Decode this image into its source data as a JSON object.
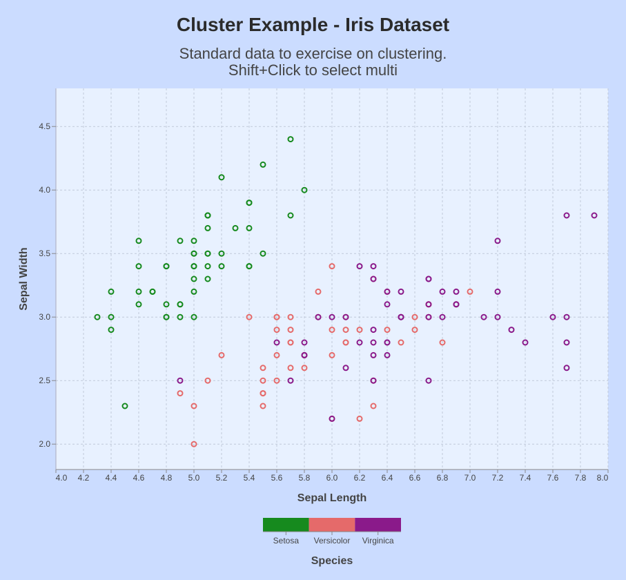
{
  "title": "Cluster Example - Iris Dataset",
  "subtitle_lines": [
    "Standard data to exercise on clustering.",
    "Shift+Click to select multi"
  ],
  "chart_data": {
    "type": "scatter",
    "xlabel": "Sepal Length",
    "ylabel": "Sepal Width",
    "xlim": [
      4.0,
      8.0
    ],
    "ylim": [
      1.8,
      4.8
    ],
    "x_ticks": [
      4.0,
      4.2,
      4.4,
      4.6,
      4.8,
      5.0,
      5.2,
      5.4,
      5.6,
      5.8,
      6.0,
      6.2,
      6.4,
      6.6,
      6.8,
      7.0,
      7.2,
      7.4,
      7.6,
      7.8,
      8.0
    ],
    "x_tick_labels": [
      "4.0",
      "4.2",
      "4.4",
      "4.6",
      "4.8",
      "5.0",
      "5.2",
      "5.4",
      "5.6",
      "5.8",
      "6.0",
      "6.2",
      "6.4",
      "6.6",
      "6.8",
      "7.0",
      "7.2",
      "7.4",
      "7.6",
      "7.8",
      "8.0"
    ],
    "y_ticks": [
      2.0,
      2.5,
      3.0,
      3.5,
      4.0,
      4.5
    ],
    "y_tick_labels": [
      "2.0",
      "2.5",
      "3.0",
      "3.5",
      "4.0",
      "4.5"
    ],
    "grid": true,
    "legend": {
      "title": "Species",
      "placement": "bottom",
      "entries": [
        "Setosa",
        "Versicolor",
        "Virginica"
      ]
    },
    "colors": {
      "Setosa": "#168a1e",
      "Versicolor": "#e56a6a",
      "Virginica": "#8a1a8a",
      "background": "#cbdcff",
      "plot_background": "#e8f1ff",
      "grid": "#bfc9d9"
    },
    "series": [
      {
        "name": "Setosa",
        "points": [
          [
            5.1,
            3.5
          ],
          [
            4.9,
            3.0
          ],
          [
            4.7,
            3.2
          ],
          [
            4.6,
            3.1
          ],
          [
            5.0,
            3.6
          ],
          [
            5.4,
            3.9
          ],
          [
            4.6,
            3.4
          ],
          [
            5.0,
            3.4
          ],
          [
            4.4,
            2.9
          ],
          [
            4.9,
            3.1
          ],
          [
            5.4,
            3.7
          ],
          [
            4.8,
            3.4
          ],
          [
            4.8,
            3.0
          ],
          [
            4.3,
            3.0
          ],
          [
            5.8,
            4.0
          ],
          [
            5.7,
            4.4
          ],
          [
            5.4,
            3.9
          ],
          [
            5.1,
            3.5
          ],
          [
            5.7,
            3.8
          ],
          [
            5.1,
            3.8
          ],
          [
            5.4,
            3.4
          ],
          [
            5.1,
            3.7
          ],
          [
            4.6,
            3.6
          ],
          [
            5.1,
            3.3
          ],
          [
            4.8,
            3.4
          ],
          [
            5.0,
            3.0
          ],
          [
            5.0,
            3.4
          ],
          [
            5.2,
            3.5
          ],
          [
            5.2,
            3.4
          ],
          [
            4.7,
            3.2
          ],
          [
            4.8,
            3.1
          ],
          [
            5.4,
            3.4
          ],
          [
            5.2,
            4.1
          ],
          [
            5.5,
            4.2
          ],
          [
            4.9,
            3.1
          ],
          [
            5.0,
            3.2
          ],
          [
            5.5,
            3.5
          ],
          [
            4.9,
            3.6
          ],
          [
            4.4,
            3.0
          ],
          [
            5.1,
            3.4
          ],
          [
            5.0,
            3.5
          ],
          [
            4.5,
            2.3
          ],
          [
            4.4,
            3.2
          ],
          [
            5.0,
            3.5
          ],
          [
            5.1,
            3.8
          ],
          [
            4.8,
            3.0
          ],
          [
            5.1,
            3.8
          ],
          [
            4.6,
            3.2
          ],
          [
            5.3,
            3.7
          ],
          [
            5.0,
            3.3
          ]
        ]
      },
      {
        "name": "Versicolor",
        "points": [
          [
            7.0,
            3.2
          ],
          [
            6.4,
            3.2
          ],
          [
            6.9,
            3.1
          ],
          [
            5.5,
            2.3
          ],
          [
            6.5,
            2.8
          ],
          [
            5.7,
            2.8
          ],
          [
            6.3,
            3.3
          ],
          [
            4.9,
            2.4
          ],
          [
            6.6,
            2.9
          ],
          [
            5.2,
            2.7
          ],
          [
            5.0,
            2.0
          ],
          [
            5.9,
            3.0
          ],
          [
            6.0,
            2.2
          ],
          [
            6.1,
            2.9
          ],
          [
            5.6,
            2.9
          ],
          [
            6.7,
            3.1
          ],
          [
            5.6,
            3.0
          ],
          [
            5.8,
            2.7
          ],
          [
            6.2,
            2.2
          ],
          [
            5.6,
            2.5
          ],
          [
            5.9,
            3.2
          ],
          [
            6.1,
            2.8
          ],
          [
            6.3,
            2.5
          ],
          [
            6.1,
            2.8
          ],
          [
            6.4,
            2.9
          ],
          [
            6.6,
            3.0
          ],
          [
            6.8,
            2.8
          ],
          [
            6.7,
            3.0
          ],
          [
            6.0,
            2.9
          ],
          [
            5.7,
            2.6
          ],
          [
            5.5,
            2.4
          ],
          [
            5.5,
            2.4
          ],
          [
            5.8,
            2.7
          ],
          [
            6.0,
            2.7
          ],
          [
            5.4,
            3.0
          ],
          [
            6.0,
            3.4
          ],
          [
            6.7,
            3.1
          ],
          [
            6.3,
            2.3
          ],
          [
            5.6,
            3.0
          ],
          [
            5.5,
            2.5
          ],
          [
            5.5,
            2.6
          ],
          [
            6.1,
            3.0
          ],
          [
            5.8,
            2.6
          ],
          [
            5.0,
            2.3
          ],
          [
            5.6,
            2.7
          ],
          [
            5.7,
            3.0
          ],
          [
            5.7,
            2.9
          ],
          [
            6.2,
            2.9
          ],
          [
            5.1,
            2.5
          ],
          [
            5.7,
            2.8
          ]
        ]
      },
      {
        "name": "Virginica",
        "points": [
          [
            6.3,
            3.3
          ],
          [
            5.8,
            2.7
          ],
          [
            7.1,
            3.0
          ],
          [
            6.3,
            2.9
          ],
          [
            6.5,
            3.0
          ],
          [
            7.6,
            3.0
          ],
          [
            4.9,
            2.5
          ],
          [
            7.3,
            2.9
          ],
          [
            6.7,
            2.5
          ],
          [
            7.2,
            3.6
          ],
          [
            6.5,
            3.2
          ],
          [
            6.4,
            2.7
          ],
          [
            6.8,
            3.0
          ],
          [
            5.7,
            2.5
          ],
          [
            5.8,
            2.8
          ],
          [
            6.4,
            3.2
          ],
          [
            6.5,
            3.0
          ],
          [
            7.7,
            3.8
          ],
          [
            7.7,
            2.6
          ],
          [
            6.0,
            2.2
          ],
          [
            6.9,
            3.2
          ],
          [
            5.6,
            2.8
          ],
          [
            7.7,
            2.8
          ],
          [
            6.3,
            2.7
          ],
          [
            6.7,
            3.3
          ],
          [
            7.2,
            3.2
          ],
          [
            6.2,
            2.8
          ],
          [
            6.1,
            3.0
          ],
          [
            6.4,
            2.8
          ],
          [
            7.2,
            3.0
          ],
          [
            7.4,
            2.8
          ],
          [
            7.9,
            3.8
          ],
          [
            6.4,
            2.8
          ],
          [
            6.3,
            2.8
          ],
          [
            6.1,
            2.6
          ],
          [
            7.7,
            3.0
          ],
          [
            6.3,
            3.4
          ],
          [
            6.4,
            3.1
          ],
          [
            6.0,
            3.0
          ],
          [
            6.9,
            3.1
          ],
          [
            6.7,
            3.1
          ],
          [
            6.9,
            3.1
          ],
          [
            5.8,
            2.7
          ],
          [
            6.8,
            3.2
          ],
          [
            6.7,
            3.3
          ],
          [
            6.7,
            3.0
          ],
          [
            6.3,
            2.5
          ],
          [
            6.5,
            3.0
          ],
          [
            6.2,
            3.4
          ],
          [
            5.9,
            3.0
          ]
        ]
      }
    ]
  }
}
